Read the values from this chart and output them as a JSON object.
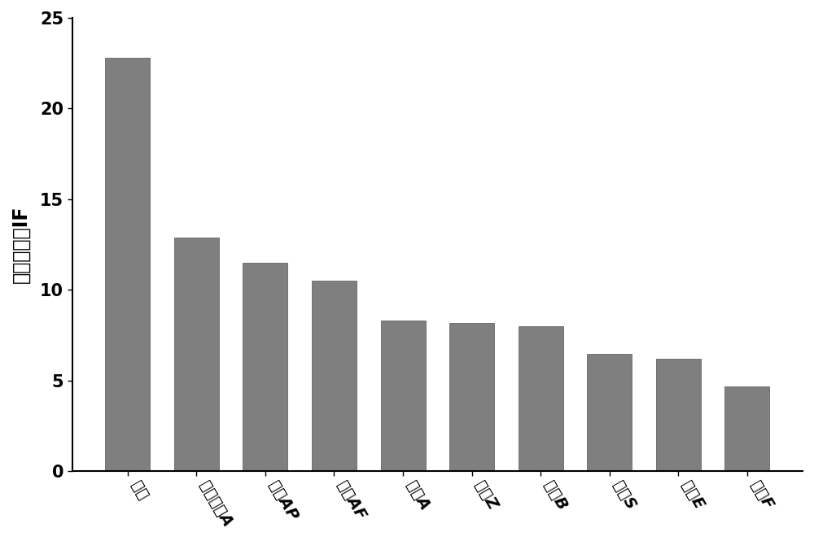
{
  "categories": [
    "酰酘",
    "四渴双酰A",
    "双酰AP",
    "双酰AF",
    "双酰A",
    "双酰Z",
    "双酰B",
    "双酰S",
    "双酰E",
    "双酰F"
  ],
  "values": [
    22.8,
    12.9,
    11.5,
    10.5,
    8.3,
    8.2,
    8.0,
    6.5,
    6.2,
    4.7
  ],
  "bar_color": "#7f7f7f",
  "ylabel": "印迹因子，IF",
  "ylim": [
    0,
    25
  ],
  "yticks": [
    0,
    5,
    10,
    15,
    20,
    25
  ],
  "background_color": "#ffffff",
  "bar_edge_color": "#555555",
  "ylabel_fontsize": 17,
  "tick_fontsize": 15,
  "xtick_fontsize": 14
}
